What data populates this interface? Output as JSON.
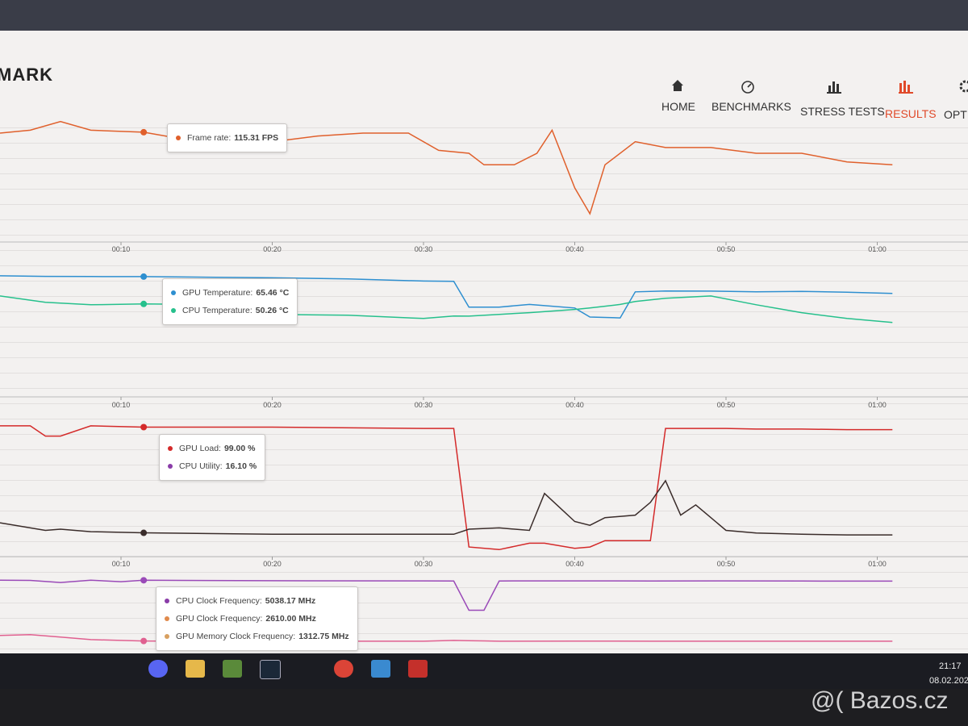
{
  "header": {
    "logo": "MARK",
    "nav": [
      "HOME",
      "BENCHMARKS",
      "STRESS TESTS",
      "RESULTS",
      "OPTI"
    ]
  },
  "chart_data": [
    {
      "type": "line",
      "x": [
        2,
        4,
        6,
        8,
        11.5,
        14,
        17,
        20,
        23,
        26,
        29,
        31,
        33,
        34,
        36,
        37.5,
        38.5,
        40,
        41,
        42,
        44,
        46,
        49,
        52,
        55,
        58,
        61
      ],
      "series": [
        {
          "color": "#e0602c",
          "values": [
            115,
            116,
            119,
            116,
            115.31,
            113,
            112,
            112,
            114,
            115,
            115,
            109,
            108,
            104,
            104,
            108,
            116,
            96,
            87,
            104,
            112,
            110,
            110,
            108,
            108,
            105,
            104
          ]
        }
      ],
      "xlim": [
        2,
        66
      ],
      "ylim": [
        80,
        122
      ],
      "xticks": [
        {
          "value": 10,
          "label": "00:10"
        },
        {
          "value": 20,
          "label": "00:20"
        },
        {
          "value": 30,
          "label": "00:30"
        },
        {
          "value": 40,
          "label": "00:40"
        },
        {
          "value": 50,
          "label": "00:50"
        },
        {
          "value": 60,
          "label": "01:00"
        }
      ],
      "cursor_x": 11.5,
      "tooltip": [
        {
          "color": "#e0602c",
          "label": "Frame rate:",
          "value": "115.31 FPS"
        }
      ]
    },
    {
      "type": "line",
      "x": [
        2,
        5,
        8,
        11.5,
        15,
        20,
        25,
        30,
        32,
        33,
        35,
        37,
        40,
        41,
        43,
        44,
        46,
        49,
        52,
        55,
        58,
        61
      ],
      "series": [
        {
          "color": "#2e8fd0",
          "values": [
            65.9,
            65.6,
            65.5,
            65.46,
            65.2,
            64.8,
            64.2,
            63,
            62.8,
            48.5,
            48.5,
            50,
            48,
            43,
            42.5,
            57,
            57.5,
            57.4,
            57,
            57.2,
            56.8,
            56.1
          ]
        },
        {
          "color": "#26c08c",
          "values": [
            54.7,
            51.2,
            49.8,
            50.26,
            50,
            44.5,
            44,
            42.2,
            43.6,
            43.5,
            44.5,
            45.4,
            47.2,
            48,
            50,
            51.6,
            53.4,
            54.7,
            49.8,
            45.4,
            42.2,
            40
          ]
        }
      ],
      "xlim": [
        2,
        66
      ],
      "ylim": [
        4,
        69
      ],
      "xticks": [
        {
          "value": 10,
          "label": "00:10"
        },
        {
          "value": 20,
          "label": "00:20"
        },
        {
          "value": 30,
          "label": "00:30"
        },
        {
          "value": 40,
          "label": "00:40"
        },
        {
          "value": 50,
          "label": "00:50"
        },
        {
          "value": 60,
          "label": "01:00"
        }
      ],
      "cursor_x": 11.5,
      "tooltip": [
        {
          "color": "#2e8fd0",
          "label": "GPU Temperature:",
          "value": "65.46 °C"
        },
        {
          "color": "#26c08c",
          "label": "CPU Temperature:",
          "value": "50.26 °C"
        }
      ]
    },
    {
      "type": "line",
      "x": [
        2,
        4,
        5,
        6,
        8,
        11.5,
        20,
        30,
        32,
        33,
        35,
        37,
        38,
        40,
        41,
        42,
        44,
        45,
        46,
        47,
        48,
        50,
        52,
        55,
        58,
        61
      ],
      "series": [
        {
          "color": "#d42a2a",
          "values": [
            100,
            100,
            92,
            92,
            100,
            99,
            99,
            98,
            98,
            5,
            3,
            8,
            8,
            4,
            5,
            10,
            10,
            10,
            98,
            98,
            98,
            98,
            97.5,
            97.5,
            97,
            97
          ]
        },
        {
          "color": "#3a2c2a",
          "values": [
            24,
            20,
            18,
            19,
            17,
            16.1,
            15,
            15,
            15,
            19,
            20,
            18,
            47,
            25,
            22,
            28,
            30,
            40,
            57,
            30,
            38,
            18,
            16,
            15,
            14.5,
            14.5
          ]
        }
      ],
      "xlim": [
        2,
        66
      ],
      "ylim": [
        0,
        105
      ],
      "xticks": [
        {
          "value": 10,
          "label": "00:10"
        },
        {
          "value": 20,
          "label": "00:20"
        },
        {
          "value": 30,
          "label": "00:30"
        },
        {
          "value": 40,
          "label": "00:40"
        },
        {
          "value": 50,
          "label": "00:50"
        },
        {
          "value": 60,
          "label": "01:00"
        }
      ],
      "cursor_x": 11.5,
      "tooltip": [
        {
          "color": "#d42a2a",
          "label": "GPU Load:",
          "value": "99.00 %"
        },
        {
          "color": "#8a3ca8",
          "label": "CPU Utility:",
          "value": "16.10 %"
        }
      ]
    },
    {
      "type": "line",
      "x": [
        2,
        4,
        6,
        8,
        10,
        11.5,
        14,
        20,
        30,
        32,
        33,
        34,
        35,
        36,
        40,
        45,
        50,
        55,
        58,
        61
      ],
      "series": [
        {
          "color": "#9a4ab8",
          "values": [
            5038,
            5030,
            4900,
            5040,
            4950,
            5038.17,
            5030,
            5010,
            5000,
            4990,
            3200,
            3200,
            4990,
            5000,
            5000,
            4995,
            5000,
            4990,
            4985,
            4985
          ]
        },
        {
          "color": "#e06090",
          "values": [
            1650,
            1700,
            1550,
            1400,
            1350,
            1312.75,
            1300,
            1300,
            1300,
            1350,
            1330,
            1320,
            1300,
            1300,
            1310,
            1300,
            1300,
            1300,
            1300,
            1300
          ]
        }
      ],
      "xlim": [
        2,
        66
      ],
      "ylim": [
        800,
        5400
      ],
      "cursor_x": 11.5,
      "tooltip": [
        {
          "color": "#8a3ca8",
          "label": "CPU Clock Frequency:",
          "value": "5038.17 MHz"
        },
        {
          "color": "#e08a4c",
          "label": "GPU Clock Frequency:",
          "value": "2610.00 MHz"
        },
        {
          "color": "#d8a060",
          "label": "GPU Memory Clock Frequency:",
          "value": "1312.75 MHz"
        }
      ]
    }
  ],
  "taskbar": {
    "time": "21:17",
    "date": "08.02.202"
  },
  "watermark": "@( Bazos.cz"
}
